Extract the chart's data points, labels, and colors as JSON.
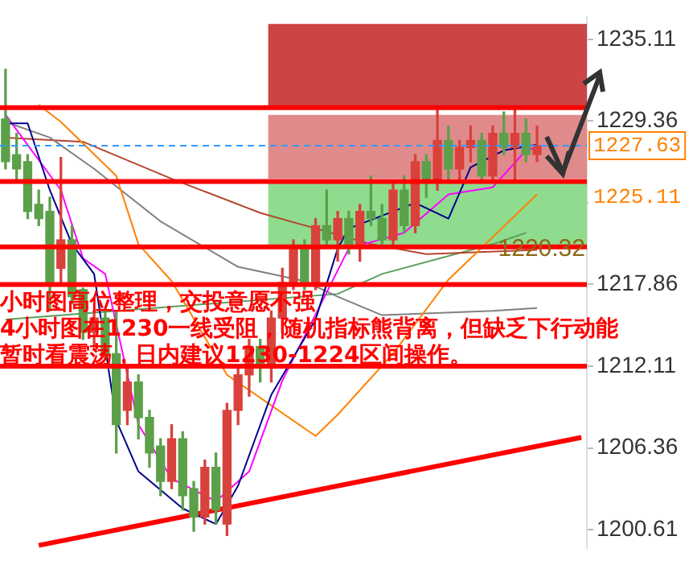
{
  "chart_data": {
    "type": "candlestick",
    "categories": [
      null,
      null,
      null,
      null,
      null,
      null,
      null,
      null,
      null,
      null,
      null,
      null,
      null,
      null,
      null,
      null,
      null,
      null,
      null,
      null,
      null,
      null,
      null,
      null,
      null,
      null,
      null,
      null,
      null,
      null,
      null,
      null,
      null,
      null,
      null,
      null,
      null,
      null,
      null,
      null,
      null,
      null,
      null,
      null,
      null,
      null,
      null,
      null,
      null,
      null,
      null,
      null,
      null
    ],
    "ohlc": [
      [
        1229.5,
        1233,
        1226,
        1226.5
      ],
      [
        1227,
        1228.5,
        1225,
        1226
      ],
      [
        1226.5,
        1227,
        1222.5,
        1223
      ],
      [
        1223.5,
        1224.5,
        1222,
        1222.5
      ],
      [
        1223,
        1224,
        1216,
        1218
      ],
      [
        1219,
        1226.8,
        1218,
        1221
      ],
      [
        1221,
        1222,
        1216.5,
        1217
      ],
      [
        1217.5,
        1217.6,
        1214,
        1214.5
      ],
      [
        1214.5,
        1216,
        1213.5,
        1215.5
      ],
      [
        1215.5,
        1216,
        1212.6,
        1212.9
      ],
      [
        1213,
        1216,
        1206,
        1208
      ],
      [
        1209,
        1212,
        1208,
        1211
      ],
      [
        1211,
        1211.5,
        1207,
        1208.5
      ],
      [
        1208.5,
        1209,
        1205,
        1206
      ],
      [
        1206.5,
        1207,
        1203,
        1204
      ],
      [
        1204,
        1208,
        1203.5,
        1207
      ],
      [
        1207,
        1207.5,
        1202,
        1203
      ],
      [
        1203.5,
        1204,
        1200.5,
        1201.5
      ],
      [
        1201.5,
        1205.5,
        1201,
        1205
      ],
      [
        1205,
        1206,
        1201,
        1202
      ],
      [
        1201,
        1209.5,
        1200.2,
        1209
      ],
      [
        1209,
        1212,
        1208,
        1211.5
      ],
      [
        1211.5,
        1214,
        1210,
        1213.5
      ],
      [
        1213.5,
        1214,
        1211,
        1212
      ],
      [
        1212,
        1216,
        1211,
        1215.5
      ],
      [
        1215.5,
        1219,
        1214.5,
        1218
      ],
      [
        1218,
        1221,
        1217.5,
        1220.5
      ],
      [
        1220.5,
        1221,
        1217.5,
        1218
      ],
      [
        1218,
        1222.5,
        1217.5,
        1222
      ],
      [
        1222,
        1224.5,
        1220.5,
        1221
      ],
      [
        1221,
        1223,
        1219.5,
        1222.5
      ],
      [
        1222.5,
        1223,
        1220,
        1220.5
      ],
      [
        1220.5,
        1223.5,
        1219.5,
        1223
      ],
      [
        1223,
        1225.5,
        1222,
        1222.5
      ],
      [
        1222.5,
        1223.5,
        1220.5,
        1221
      ],
      [
        1221,
        1225,
        1220.5,
        1224.5
      ],
      [
        1224.5,
        1225.5,
        1221.5,
        1222
      ],
      [
        1222,
        1227,
        1221.5,
        1226.5
      ],
      [
        1226.5,
        1227,
        1224,
        1225
      ],
      [
        1225,
        1230.2,
        1224.5,
        1228
      ],
      [
        1228,
        1229,
        1225,
        1226
      ],
      [
        1226,
        1228,
        1225,
        1227.5
      ],
      [
        1227.5,
        1229,
        1226.5,
        1228
      ],
      [
        1228,
        1228.5,
        1225,
        1225.5
      ],
      [
        1225.5,
        1229,
        1225,
        1228.5
      ],
      [
        1228.5,
        1230,
        1227,
        1227.5
      ],
      [
        1227.5,
        1230.3,
        1225,
        1228.5
      ],
      [
        1228.5,
        1229.5,
        1226.5,
        1227
      ],
      [
        1227,
        1229,
        1226.5,
        1227.63
      ],
      null,
      null,
      null,
      null
    ],
    "colors": [
      "#5ca04a",
      "#5ca04a",
      "#5ca04a",
      "#5ca04a",
      "#5ca04a",
      "#d9413c",
      "#5ca04a",
      "#5ca04a",
      "#d9413c",
      "#5ca04a",
      "#5ca04a",
      "#d9413c",
      "#5ca04a",
      "#5ca04a",
      "#5ca04a",
      "#d9413c",
      "#5ca04a",
      "#5ca04a",
      "#d9413c",
      "#5ca04a",
      "#d9413c",
      "#d9413c",
      "#d9413c",
      "#5ca04a",
      "#d9413c",
      "#d9413c",
      "#d9413c",
      "#5ca04a",
      "#d9413c",
      "#5ca04a",
      "#d9413c",
      "#5ca04a",
      "#d9413c",
      "#5ca04a",
      "#5ca04a",
      "#d9413c",
      "#5ca04a",
      "#d9413c",
      "#5ca04a",
      "#d9413c",
      "#5ca04a",
      "#d9413c",
      "#d9413c",
      "#5ca04a",
      "#d9413c",
      "#5ca04a",
      "#d9413c",
      "#5ca04a",
      "#d9413c",
      null,
      null,
      null,
      null
    ],
    "series": [
      {
        "type": "line",
        "color": "#00008b",
        "values": [
          1229.2,
          null,
          1229.2,
          null,
          1224.5,
          null,
          1220.7,
          null,
          1218.6,
          null,
          1208.3,
          null,
          1204.7,
          null,
          null,
          null,
          1202.1,
          null,
          null,
          1201,
          null,
          1203.7,
          null,
          null,
          1210.1,
          null,
          null,
          null,
          1215.4,
          null,
          1220.4,
          1221.8,
          null,
          null,
          null,
          null,
          null,
          1223.6,
          null,
          null,
          1222.5,
          null,
          1226.1,
          null,
          null,
          1227.3,
          null,
          null,
          1227.7,
          null,
          null,
          null,
          null
        ]
      },
      {
        "type": "line",
        "color": "#ff00ff",
        "values": [
          1229.8,
          null,
          null,
          null,
          null,
          1224.5,
          null,
          1219.7,
          null,
          1218.6,
          null,
          null,
          1208,
          null,
          null,
          1204.2,
          null,
          null,
          null,
          1202.6,
          null,
          null,
          1204.7,
          null,
          null,
          1211.1,
          null,
          null,
          null,
          null,
          null,
          1220.4,
          null,
          null,
          null,
          null,
          1221.5,
          null,
          null,
          null,
          1224.2,
          null,
          null,
          null,
          1224.7,
          null,
          null,
          1227.3,
          1227.5,
          null,
          null,
          null,
          null
        ]
      },
      {
        "type": "line",
        "color": "#ff8000",
        "values": [
          null,
          null,
          null,
          1230.5,
          null,
          1229.3,
          null,
          null,
          null,
          null,
          1225.5,
          null,
          1220.7,
          null,
          null,
          1218.1,
          null,
          null,
          null,
          null,
          1211.5,
          null,
          null,
          null,
          null,
          null,
          null,
          null,
          1207.2,
          null,
          1208.7,
          null,
          null,
          null,
          null,
          1213,
          null,
          null,
          null,
          null,
          1218.2,
          null,
          null,
          null,
          null,
          null,
          null,
          null,
          1224.2,
          null,
          null,
          null,
          null
        ]
      },
      {
        "type": "line",
        "color": "#808080",
        "values": [
          1229.3,
          null,
          null,
          null,
          1228.2,
          null,
          null,
          null,
          1226,
          null,
          null,
          null,
          null,
          null,
          1222.3,
          null,
          null,
          null,
          null,
          null,
          null,
          1219.1,
          null,
          null,
          null,
          null,
          null,
          1218.1,
          null,
          null,
          1217,
          null,
          null,
          null,
          1215.7,
          null,
          null,
          null,
          null,
          null,
          null,
          null,
          null,
          null,
          1216,
          null,
          null,
          null,
          1216.2,
          null,
          null,
          null,
          null
        ]
      },
      {
        "type": "line",
        "color": "#b5452e",
        "values": [
          1228.2,
          null,
          null,
          null,
          null,
          null,
          null,
          1227.9,
          null,
          null,
          null,
          null,
          null,
          null,
          null,
          1225.3,
          null,
          null,
          null,
          null,
          null,
          null,
          null,
          1222.9,
          null,
          null,
          null,
          null,
          1221.8,
          null,
          null,
          null,
          null,
          1220.7,
          null,
          null,
          null,
          null,
          1220,
          null,
          null,
          null,
          null,
          null,
          null,
          null,
          null,
          null,
          1220.3,
          null,
          null,
          null,
          null
        ]
      },
      {
        "type": "line",
        "color": "#5aa05a",
        "values": [
          1215.4,
          null,
          null,
          null,
          null,
          null,
          null,
          null,
          null,
          null,
          null,
          null,
          null,
          null,
          null,
          null,
          null,
          null,
          null,
          null,
          null,
          null,
          null,
          null,
          null,
          null,
          null,
          null,
          null,
          null,
          1217.2,
          null,
          null,
          null,
          1218.6,
          null,
          null,
          null,
          null,
          null,
          null,
          null,
          null,
          null,
          1220.7,
          null,
          null,
          1221.5,
          null,
          null,
          null,
          null,
          null
        ]
      },
      {
        "type": "line",
        "color": "#ff0000",
        "values": [
          null,
          null,
          null,
          1199.5,
          null,
          null,
          null,
          null,
          null,
          null,
          null,
          null,
          null,
          null,
          null,
          null,
          null,
          null,
          null,
          null,
          null,
          null,
          null,
          null,
          null,
          null,
          null,
          null,
          null,
          null,
          null,
          null,
          null,
          null,
          null,
          null,
          null,
          null,
          null,
          null,
          null,
          null,
          null,
          null,
          null,
          null,
          null,
          null,
          null,
          null,
          null,
          null,
          1207.1
        ]
      }
    ],
    "ylim": [
      1199.3,
      1236.7
    ],
    "yticks": [
      1200.61,
      1206.36,
      1212.11,
      1217.86,
      {
        "value": 1223.61,
        "label": null
      },
      1229.36,
      1235.11
    ],
    "bands": [
      {
        "axis": "y",
        "from": 1230.3,
        "to": 1236.2,
        "color": "#cc4444"
      },
      {
        "axis": "y",
        "from": 1225.3,
        "to": 1229.8,
        "color": "#e08b8b"
      },
      {
        "axis": "y",
        "from": 1220.4,
        "to": 1225.1,
        "color": "#8fdc8f"
      }
    ],
    "ref_lines": [
      {
        "axis": "y",
        "value": 1230.3,
        "color": "#ff0000"
      },
      {
        "axis": "y",
        "value": 1225.11,
        "label": "1225.11",
        "color": "#ff0000"
      },
      {
        "axis": "y",
        "value": 1220.5,
        "color": "#ff0000"
      },
      {
        "axis": "y",
        "value": 1217.86,
        "color": "#ff0000"
      },
      {
        "axis": "y",
        "value": 1212.11,
        "color": "#ff0000"
      },
      {
        "axis": "y",
        "value": 1227.63,
        "label": "1227.63",
        "color": "#3399ff",
        "line_style": "dashed"
      }
    ],
    "annotations": [
      "小时图高位整理，交投意愿不强",
      "4小时图在1230一线受阻，随机指标熊背离，但缺乏下行动能",
      "暂时看震荡，日内建议1230-1224区间操作。",
      {
        "text": "1220.32",
        "y": 1220.32
      }
    ],
    "grid": false,
    "legend": false,
    "tick_labels": "y"
  }
}
